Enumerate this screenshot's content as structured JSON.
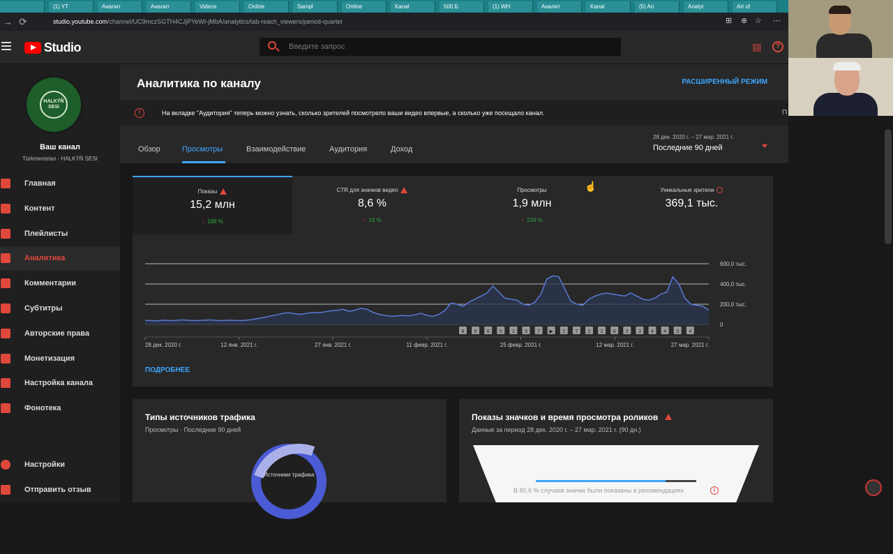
{
  "browser": {
    "tabs": [
      "",
      "(1) YT",
      "Аналит",
      "Аналит",
      "Videos",
      "Online",
      "Sampl",
      "Online",
      "Kanal",
      "500 Б",
      "(1) WH",
      "Аналит",
      "Kanal",
      "(5) An",
      "Analyt",
      "Art of"
    ],
    "url_host": "studio.youtube.com",
    "url_path": "/channel/UC9mczSGTH4CJjPYeWI-jMbA/analytics/tab-reach_viewers/period-quarter"
  },
  "header": {
    "logo_text": "Studio",
    "search_placeholder": "Введите запрос"
  },
  "channel": {
    "name": "Ваш канал",
    "subtitle": "Türkmenistan - HALKÝŇ SESI",
    "logo_text": "HALKÝŇ SESI"
  },
  "sidebar": {
    "items": [
      {
        "label": "Главная",
        "icon": "dashboard-icon"
      },
      {
        "label": "Контент",
        "icon": "content-icon"
      },
      {
        "label": "Плейлисты",
        "icon": "playlist-icon"
      },
      {
        "label": "Аналитика",
        "icon": "analytics-icon"
      },
      {
        "label": "Комментарии",
        "icon": "comments-icon"
      },
      {
        "label": "Субтитры",
        "icon": "subtitles-icon"
      },
      {
        "label": "Авторские права",
        "icon": "copyright-icon"
      },
      {
        "label": "Монетизация",
        "icon": "dollar-icon"
      },
      {
        "label": "Настройка канала",
        "icon": "customize-icon"
      },
      {
        "label": "Фонотека",
        "icon": "audio-library-icon"
      }
    ],
    "settings": "Настройки",
    "feedback": "Отправить отзыв"
  },
  "page": {
    "title": "Аналитика по каналу",
    "advanced": "РАСШИРЕННЫЙ РЕЖИМ",
    "notice": "На вкладке \"Аудитория\" теперь можно узнать, сколько зрителей посмотрело ваши видео впервые, а сколько уже посещало канал.",
    "tabs": [
      "Обзор",
      "Просмотры",
      "Взаимодействие",
      "Аудитория",
      "Доход"
    ],
    "period_range": "28 дек. 2020 г. – 27 мар. 2021 г.",
    "period_label": "Последние 90 дней",
    "more": "ПОДРОБНЕЕ"
  },
  "metrics": [
    {
      "label": "Показы",
      "value": "15,2 млн",
      "delta": "189 %"
    },
    {
      "label": "CTR для значков видео",
      "value": "8,6 %",
      "delta": "18 %"
    },
    {
      "label": "Просмотры",
      "value": "1,9 млн",
      "delta": "234 %"
    },
    {
      "label": "Уникальные зрители",
      "value": "369,1 тыс.",
      "delta": ""
    }
  ],
  "chart_data": {
    "type": "area",
    "y_ticks": [
      "600,0 тыс.",
      "400,0 тыс.",
      "200,0 тыс.",
      "0"
    ],
    "ylim": [
      0,
      600000
    ],
    "x_ticks": [
      "28 дек. 2020 г.",
      "12 янв. 2021 г.",
      "27 янв. 2021 г.",
      "11 февр. 2021 г.",
      "25 февр. 2021 г.",
      "12 мар. 2021 г.",
      "27 мар. 2021 г."
    ],
    "series": [
      {
        "values": [
          40000,
          38000,
          35000,
          42000,
          38000,
          40000,
          45000,
          42000,
          38000,
          40000,
          42000,
          45000,
          40000,
          38000,
          42000,
          40000,
          38000,
          42000,
          50000,
          60000,
          70000,
          85000,
          95000,
          110000,
          115000,
          105000,
          100000,
          110000,
          120000,
          115000,
          125000,
          135000,
          140000,
          150000,
          130000,
          140000,
          160000,
          150000,
          120000,
          100000,
          90000,
          80000,
          85000,
          90000,
          85000,
          95000,
          110000,
          90000,
          80000,
          100000,
          140000,
          210000,
          200000,
          180000,
          220000,
          250000,
          280000,
          310000,
          380000,
          320000,
          260000,
          250000,
          240000,
          200000,
          190000,
          220000,
          300000,
          450000,
          480000,
          470000,
          350000,
          230000,
          200000,
          190000,
          250000,
          280000,
          300000,
          310000,
          300000,
          290000,
          280000,
          310000,
          280000,
          250000,
          240000,
          260000,
          300000,
          320000,
          470000,
          400000,
          260000,
          200000,
          190000,
          180000,
          140000
        ]
      }
    ],
    "markers": [
      "8",
      "6",
      "6",
      "5",
      "2",
      "3",
      "7",
      "▶",
      "2",
      "7",
      "2",
      "2",
      "6",
      "2",
      "3",
      "4",
      "4",
      "3",
      "4"
    ]
  },
  "cards": {
    "traffic_title": "Типы источников трафика",
    "traffic_sub": "Просмотры · Последние 90 дней",
    "donut_label": "Источники трафика",
    "impressions_title": "Показы значков и время просмотра роликов",
    "impressions_sub": "Данные за период 28 дек. 2020 г. – 27 мар. 2021 г. (90 дн.)",
    "funnel_note": "В 80,6 % случаев значки были показаны в рекомендациях"
  },
  "misc": {
    "cut_text": "П"
  },
  "colors": {
    "accent_blue": "#3ea6ff",
    "accent_red": "#e0483c",
    "positive": "#2ba640",
    "chart_line": "#5a7bd6"
  }
}
